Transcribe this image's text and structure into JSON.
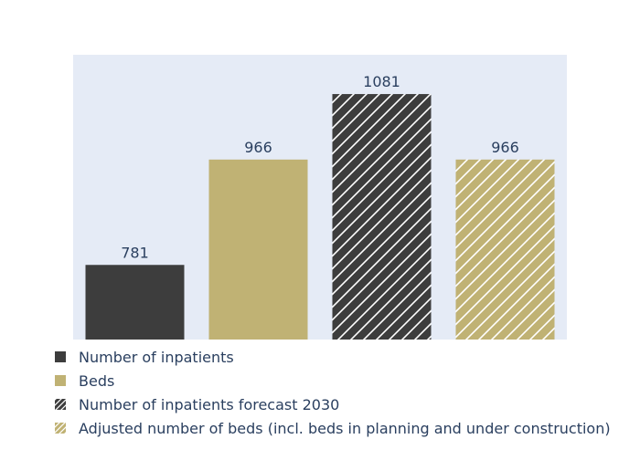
{
  "chart_data": {
    "type": "bar",
    "title": "",
    "xlabel": "",
    "ylabel": "",
    "ylim": [
      650,
      1150
    ],
    "grid": false,
    "legend_position": "bottom-left",
    "categories": [
      "Number of inpatients",
      "Beds",
      "Number of inpatients forecast 2030",
      "Adjusted number of beds (incl. beds in planning and under construction)"
    ],
    "values": [
      781,
      966,
      1081,
      966
    ],
    "data_labels": [
      "781",
      "966",
      "1081",
      "966"
    ],
    "bars": [
      {
        "name": "Number of inpatients",
        "value": 781,
        "label": "781",
        "color": "#3d3d3d",
        "hatched": false
      },
      {
        "name": "Beds",
        "value": 966,
        "label": "966",
        "color": "#c0b274",
        "hatched": false
      },
      {
        "name": "Number of inpatients forecast 2030",
        "value": 1081,
        "label": "1081",
        "color": "#3d3d3d",
        "hatched": true
      },
      {
        "name": "Adjusted number of beds (incl. beds in planning and under construction)",
        "value": 966,
        "label": "966",
        "color": "#c0b274",
        "hatched": true
      }
    ],
    "legend": [
      {
        "label": "Number of inpatients",
        "color": "#3d3d3d",
        "hatched": false
      },
      {
        "label": "Beds",
        "color": "#c0b274",
        "hatched": false
      },
      {
        "label": "Number of inpatients forecast 2030",
        "color": "#3d3d3d",
        "hatched": true
      },
      {
        "label": "Adjusted number of beds (incl. beds in planning and under construction)",
        "color": "#c0b274",
        "hatched": true
      }
    ],
    "colors": {
      "plot_background": "#e5ebf6",
      "label_text": "#2a3f5f",
      "hatch_line": "#ffffff"
    }
  }
}
